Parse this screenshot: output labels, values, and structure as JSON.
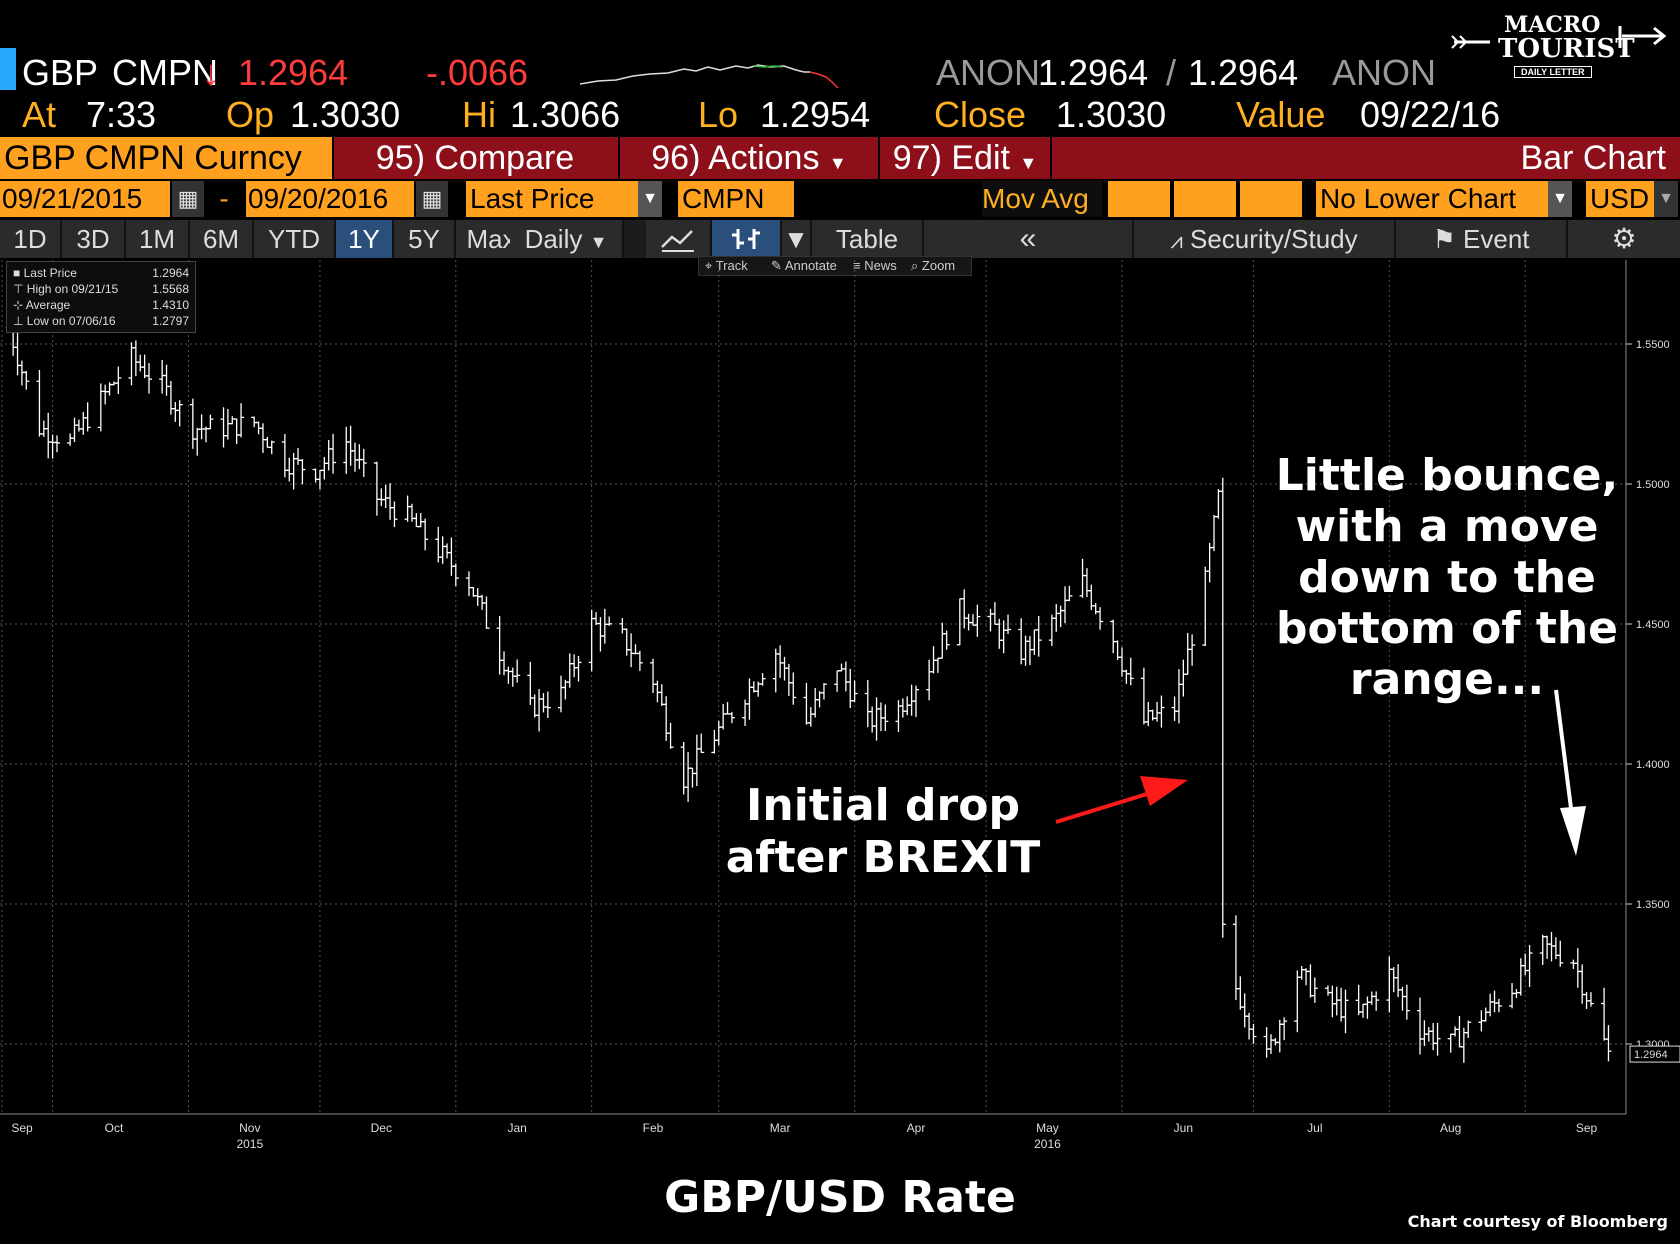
{
  "quote": {
    "ticker": "GBP",
    "source": "CMPN",
    "arrow": "↓",
    "last": "1.2964",
    "change": "-.0066",
    "bid_src": "ANON",
    "bid": "1.2964",
    "sep": "/",
    "ask": "1.2964",
    "ask_src": "ANON",
    "at_label": "At",
    "at_time": "7:33",
    "op_label": "Op",
    "op": "1.3030",
    "hi_label": "Hi",
    "hi": "1.3066",
    "lo_label": "Lo",
    "lo": "1.2954",
    "close_label": "Close",
    "close": "1.3030",
    "value_label": "Value",
    "value_date": "09/22/16"
  },
  "logo": {
    "line1": "MACRO",
    "line2": "TOURIST",
    "line3": "DAILY LETTER"
  },
  "toolbar": {
    "security": "GBP CMPN Curncy",
    "compare": "95) Compare",
    "actions": "96) Actions",
    "edit": "97) Edit",
    "chart_type": "Bar Chart"
  },
  "params": {
    "start": "09/21/2015",
    "dash": "-",
    "end": "09/20/2016",
    "field": "Last Price",
    "source": "CMPN",
    "mov_avg": "Mov Avg",
    "lower": "No Lower Chart",
    "currency": "USD"
  },
  "periods": [
    "1D",
    "3D",
    "1M",
    "6M",
    "YTD",
    "1Y",
    "5Y",
    "Max"
  ],
  "active_period": "1Y",
  "period_tools": {
    "frequency": "Daily",
    "table": "Table",
    "collapse": "«",
    "security_study": "Security/Study",
    "event": "Event"
  },
  "mini_tools": [
    "Track",
    "Annotate",
    "News",
    "Zoom"
  ],
  "legend": [
    {
      "label": "Last Price",
      "value": "1.2964"
    },
    {
      "label": "High on 09/21/15",
      "value": "1.5568"
    },
    {
      "label": "Average",
      "value": "1.4310"
    },
    {
      "label": "Low on 07/06/16",
      "value": "1.2797"
    }
  ],
  "annotations": {
    "brexit": [
      "Initial drop",
      "after BREXIT"
    ],
    "bounce": [
      "Little bounce,",
      "with a move",
      "down to the",
      "bottom of the",
      "range..."
    ]
  },
  "footer": {
    "title": "GBP/USD Rate",
    "credit": "Chart courtesy of Bloomberg"
  },
  "colors": {
    "accent_orange": "#ffa01e",
    "toolbar_red": "#8c0f1a",
    "down_red": "#ff3c3c",
    "arrow_red": "#ff1a1a",
    "bars": "#ffffff"
  },
  "chart_data": {
    "type": "bar",
    "subtype": "ohlc-daily",
    "ylim": [
      1.275,
      1.58
    ],
    "y_ticks": [
      "1.5500",
      "1.5000",
      "1.4500",
      "1.4000",
      "1.3500",
      "1.3000"
    ],
    "last_price_label": "1.2964",
    "x_month_labels": [
      "Sep",
      "Oct",
      "Nov",
      "Dec",
      "Jan",
      "Feb",
      "Mar",
      "Apr",
      "May",
      "Jun",
      "Jul",
      "Aug",
      "Sep"
    ],
    "x_year_labels": [
      {
        "label": "2015",
        "under": "Nov"
      },
      {
        "label": "2016",
        "under": "May"
      }
    ],
    "grid": true,
    "series": [
      {
        "values": [
          {
            "date": "2015-09-21",
            "value": 1.556
          },
          {
            "date": "2015-09-28",
            "value": 1.52
          },
          {
            "date": "2015-10-05",
            "value": 1.515
          },
          {
            "date": "2015-10-12",
            "value": 1.53
          },
          {
            "date": "2015-10-19",
            "value": 1.545
          },
          {
            "date": "2015-10-26",
            "value": 1.535
          },
          {
            "date": "2015-11-02",
            "value": 1.52
          },
          {
            "date": "2015-11-09",
            "value": 1.52
          },
          {
            "date": "2015-11-16",
            "value": 1.522
          },
          {
            "date": "2015-11-23",
            "value": 1.508
          },
          {
            "date": "2015-11-30",
            "value": 1.505
          },
          {
            "date": "2015-12-07",
            "value": 1.515
          },
          {
            "date": "2015-12-14",
            "value": 1.495
          },
          {
            "date": "2015-12-21",
            "value": 1.488
          },
          {
            "date": "2015-12-28",
            "value": 1.476
          },
          {
            "date": "2016-01-04",
            "value": 1.465
          },
          {
            "date": "2016-01-11",
            "value": 1.44
          },
          {
            "date": "2016-01-18",
            "value": 1.42
          },
          {
            "date": "2016-01-25",
            "value": 1.425
          },
          {
            "date": "2016-02-01",
            "value": 1.45
          },
          {
            "date": "2016-02-08",
            "value": 1.445
          },
          {
            "date": "2016-02-15",
            "value": 1.43
          },
          {
            "date": "2016-02-22",
            "value": 1.395
          },
          {
            "date": "2016-02-29",
            "value": 1.41
          },
          {
            "date": "2016-03-07",
            "value": 1.425
          },
          {
            "date": "2016-03-14",
            "value": 1.44
          },
          {
            "date": "2016-03-21",
            "value": 1.415
          },
          {
            "date": "2016-03-28",
            "value": 1.435
          },
          {
            "date": "2016-04-04",
            "value": 1.415
          },
          {
            "date": "2016-04-11",
            "value": 1.42
          },
          {
            "date": "2016-04-18",
            "value": 1.435
          },
          {
            "date": "2016-04-25",
            "value": 1.455
          },
          {
            "date": "2016-05-02",
            "value": 1.45
          },
          {
            "date": "2016-05-09",
            "value": 1.44
          },
          {
            "date": "2016-05-16",
            "value": 1.45
          },
          {
            "date": "2016-05-23",
            "value": 1.465
          },
          {
            "date": "2016-05-30",
            "value": 1.445
          },
          {
            "date": "2016-06-06",
            "value": 1.415
          },
          {
            "date": "2016-06-13",
            "value": 1.42
          },
          {
            "date": "2016-06-20",
            "value": 1.465
          },
          {
            "date": "2016-06-23",
            "value": 1.495
          },
          {
            "date": "2016-06-24",
            "value": 1.34
          },
          {
            "date": "2016-06-27",
            "value": 1.32
          },
          {
            "date": "2016-07-04",
            "value": 1.295
          },
          {
            "date": "2016-07-11",
            "value": 1.325
          },
          {
            "date": "2016-07-18",
            "value": 1.315
          },
          {
            "date": "2016-07-25",
            "value": 1.31
          },
          {
            "date": "2016-08-01",
            "value": 1.325
          },
          {
            "date": "2016-08-08",
            "value": 1.305
          },
          {
            "date": "2016-08-15",
            "value": 1.3
          },
          {
            "date": "2016-08-22",
            "value": 1.31
          },
          {
            "date": "2016-08-29",
            "value": 1.32
          },
          {
            "date": "2016-09-05",
            "value": 1.335
          },
          {
            "date": "2016-09-12",
            "value": 1.33
          },
          {
            "date": "2016-09-20",
            "value": 1.2964
          }
        ]
      }
    ]
  }
}
